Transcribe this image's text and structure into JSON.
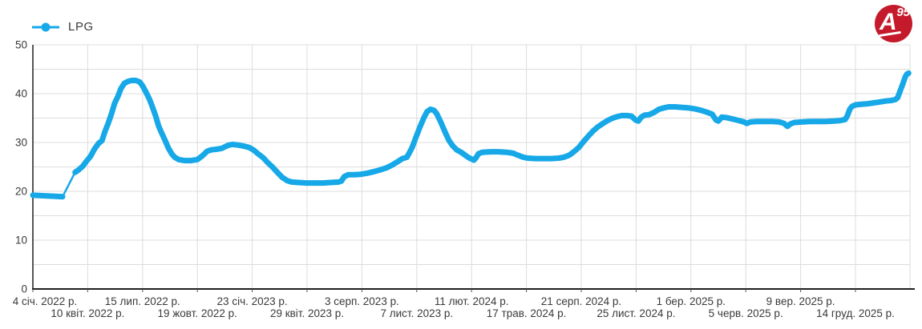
{
  "legend": {
    "label": "LPG"
  },
  "logo": {
    "letter": "A",
    "superscript": "95"
  },
  "colors": {
    "series": "#17a8e8",
    "grid": "#dcdcdc",
    "axis": "#1f1f1f",
    "tick": "#555555",
    "text": "#3a3a3a",
    "logo_red": "#c41a2b"
  },
  "chart_data": {
    "type": "line",
    "title": "",
    "series_name": "LPG",
    "legend_position": "top-left",
    "grid": true,
    "ylim": [
      0,
      50
    ],
    "y_major_ticks": [
      0,
      10,
      20,
      30,
      40,
      50
    ],
    "y_grid_step": 5,
    "x_tick_interval_days": 96,
    "x_ticks": [
      "4 січ. 2022 р.",
      "10 квіт. 2022 р.",
      "15 лип. 2022 р.",
      "19 жовт. 2022 р.",
      "23 січ. 2023 р.",
      "29 квіт. 2023 р.",
      "3 серп. 2023 р.",
      "7 лист. 2023 р.",
      "11 лют. 2024 р.",
      "17 трав. 2024 р.",
      "21 серп. 2024 р.",
      "25 лист. 2024 р.",
      "1 бер. 2025 р.",
      "5 черв. 2025 р.",
      "9 вер. 2025 р.",
      "14 груд. 2025 р."
    ],
    "x_unit": "days since 2022-01-04",
    "thin_segment_after_point": 3,
    "points": [
      [
        0,
        19.2
      ],
      [
        18,
        19.1
      ],
      [
        36,
        19.0
      ],
      [
        52,
        18.9
      ],
      [
        74,
        23.9
      ],
      [
        80,
        24.4
      ],
      [
        87,
        25.1
      ],
      [
        94,
        26.2
      ],
      [
        101,
        27.2
      ],
      [
        108,
        28.7
      ],
      [
        115,
        29.8
      ],
      [
        121,
        30.4
      ],
      [
        126,
        32.2
      ],
      [
        132,
        34.0
      ],
      [
        138,
        36.0
      ],
      [
        143,
        38.0
      ],
      [
        149,
        39.5
      ],
      [
        154,
        41.0
      ],
      [
        160,
        42.1
      ],
      [
        166,
        42.5
      ],
      [
        173,
        42.7
      ],
      [
        180,
        42.7
      ],
      [
        187,
        42.4
      ],
      [
        192,
        41.6
      ],
      [
        198,
        40.3
      ],
      [
        204,
        38.9
      ],
      [
        209,
        37.4
      ],
      [
        215,
        35.4
      ],
      [
        220,
        33.4
      ],
      [
        226,
        31.8
      ],
      [
        232,
        30.3
      ],
      [
        237,
        28.9
      ],
      [
        243,
        27.7
      ],
      [
        248,
        27.0
      ],
      [
        255,
        26.5
      ],
      [
        265,
        26.3
      ],
      [
        277,
        26.3
      ],
      [
        288,
        26.5
      ],
      [
        296,
        27.2
      ],
      [
        305,
        28.2
      ],
      [
        312,
        28.5
      ],
      [
        321,
        28.6
      ],
      [
        331,
        28.8
      ],
      [
        341,
        29.4
      ],
      [
        349,
        29.6
      ],
      [
        358,
        29.5
      ],
      [
        368,
        29.3
      ],
      [
        378,
        29.0
      ],
      [
        386,
        28.5
      ],
      [
        394,
        27.7
      ],
      [
        403,
        26.9
      ],
      [
        411,
        25.9
      ],
      [
        420,
        24.9
      ],
      [
        428,
        23.9
      ],
      [
        436,
        22.9
      ],
      [
        445,
        22.2
      ],
      [
        453,
        21.9
      ],
      [
        465,
        21.8
      ],
      [
        479,
        21.7
      ],
      [
        493,
        21.7
      ],
      [
        507,
        21.7
      ],
      [
        521,
        21.8
      ],
      [
        535,
        21.9
      ],
      [
        540,
        22.1
      ],
      [
        545,
        23.0
      ],
      [
        552,
        23.4
      ],
      [
        563,
        23.4
      ],
      [
        574,
        23.5
      ],
      [
        585,
        23.7
      ],
      [
        596,
        24.0
      ],
      [
        608,
        24.4
      ],
      [
        619,
        24.8
      ],
      [
        629,
        25.4
      ],
      [
        639,
        26.1
      ],
      [
        647,
        26.7
      ],
      [
        655,
        27.0
      ],
      [
        664,
        29.0
      ],
      [
        671,
        31.2
      ],
      [
        678,
        33.3
      ],
      [
        685,
        35.2
      ],
      [
        690,
        36.3
      ],
      [
        696,
        36.8
      ],
      [
        702,
        36.6
      ],
      [
        707,
        35.9
      ],
      [
        714,
        34.2
      ],
      [
        721,
        32.3
      ],
      [
        728,
        30.5
      ],
      [
        735,
        29.3
      ],
      [
        742,
        28.5
      ],
      [
        751,
        27.9
      ],
      [
        759,
        27.2
      ],
      [
        766,
        26.7
      ],
      [
        772,
        26.4
      ],
      [
        776,
        26.9
      ],
      [
        780,
        27.7
      ],
      [
        787,
        28.0
      ],
      [
        801,
        28.1
      ],
      [
        815,
        28.1
      ],
      [
        829,
        28.0
      ],
      [
        841,
        27.8
      ],
      [
        849,
        27.4
      ],
      [
        858,
        27.0
      ],
      [
        866,
        26.8
      ],
      [
        880,
        26.7
      ],
      [
        894,
        26.7
      ],
      [
        908,
        26.7
      ],
      [
        921,
        26.8
      ],
      [
        930,
        27.0
      ],
      [
        939,
        27.4
      ],
      [
        947,
        28.1
      ],
      [
        956,
        29.0
      ],
      [
        964,
        30.2
      ],
      [
        973,
        31.4
      ],
      [
        981,
        32.4
      ],
      [
        989,
        33.2
      ],
      [
        998,
        33.9
      ],
      [
        1006,
        34.5
      ],
      [
        1015,
        35.0
      ],
      [
        1023,
        35.3
      ],
      [
        1031,
        35.5
      ],
      [
        1040,
        35.5
      ],
      [
        1048,
        35.4
      ],
      [
        1055,
        34.6
      ],
      [
        1060,
        34.4
      ],
      [
        1065,
        35.2
      ],
      [
        1071,
        35.6
      ],
      [
        1079,
        35.7
      ],
      [
        1088,
        36.2
      ],
      [
        1096,
        36.8
      ],
      [
        1105,
        37.1
      ],
      [
        1113,
        37.3
      ],
      [
        1124,
        37.3
      ],
      [
        1135,
        37.2
      ],
      [
        1147,
        37.1
      ],
      [
        1158,
        36.9
      ],
      [
        1169,
        36.6
      ],
      [
        1180,
        36.2
      ],
      [
        1189,
        35.8
      ],
      [
        1196,
        34.6
      ],
      [
        1200,
        34.4
      ],
      [
        1206,
        35.2
      ],
      [
        1214,
        35.1
      ],
      [
        1225,
        34.8
      ],
      [
        1236,
        34.5
      ],
      [
        1245,
        34.2
      ],
      [
        1250,
        33.9
      ],
      [
        1256,
        34.2
      ],
      [
        1267,
        34.3
      ],
      [
        1281,
        34.3
      ],
      [
        1295,
        34.3
      ],
      [
        1307,
        34.2
      ],
      [
        1315,
        33.9
      ],
      [
        1321,
        33.3
      ],
      [
        1326,
        33.8
      ],
      [
        1333,
        34.1
      ],
      [
        1346,
        34.2
      ],
      [
        1360,
        34.3
      ],
      [
        1374,
        34.3
      ],
      [
        1388,
        34.3
      ],
      [
        1402,
        34.4
      ],
      [
        1413,
        34.5
      ],
      [
        1422,
        34.7
      ],
      [
        1426,
        35.5
      ],
      [
        1430,
        36.8
      ],
      [
        1434,
        37.4
      ],
      [
        1440,
        37.7
      ],
      [
        1448,
        37.8
      ],
      [
        1459,
        37.9
      ],
      [
        1471,
        38.1
      ],
      [
        1482,
        38.3
      ],
      [
        1493,
        38.5
      ],
      [
        1503,
        38.6
      ],
      [
        1510,
        38.8
      ],
      [
        1514,
        39.2
      ],
      [
        1518,
        40.5
      ],
      [
        1523,
        42.0
      ],
      [
        1527,
        43.4
      ],
      [
        1530,
        44.0
      ],
      [
        1533,
        44.2
      ]
    ]
  }
}
